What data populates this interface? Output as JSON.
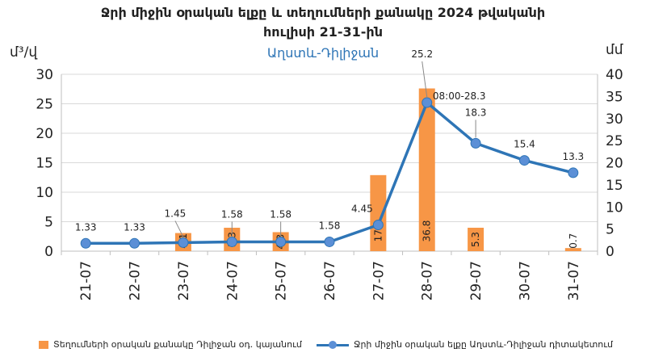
{
  "chart_data": {
    "type": "bar+line",
    "title_line1": "Ջրի միջին օրական ելքը և տեղումների քանակը 2024 թվականի",
    "title_line2": "հուլիսի 21-31-ին",
    "subtitle": "Աղստև-Դիլիջան",
    "y_left_unit": "մ³/վ",
    "y_right_unit": "մմ",
    "y_left_lim": [
      0,
      30
    ],
    "y_left_ticks": [
      "0",
      "5",
      "10",
      "15",
      "20",
      "25",
      "30"
    ],
    "y_right_lim": [
      0,
      40
    ],
    "y_right_ticks": [
      "0",
      "5",
      "10",
      "15",
      "20",
      "25",
      "30",
      "35",
      "40"
    ],
    "categories": [
      "21-07",
      "22-07",
      "23-07",
      "24-07",
      "25-07",
      "26-07",
      "27-07",
      "28-07",
      "29-07",
      "30-07",
      "31-07"
    ],
    "grid": true,
    "legend_position": "bottom",
    "series": [
      {
        "name": "Տեղումների օրական քանակը Դիլիջան օդ. կայանում",
        "kind": "bar",
        "axis": "right",
        "color": "#f79646",
        "values": [
          null,
          null,
          4.1,
          5.3,
          4.3,
          null,
          17.2,
          36.8,
          5.3,
          null,
          0.7
        ],
        "labels": [
          "",
          "",
          "4.1",
          "5.3",
          "4.3",
          "",
          "17.2",
          "36.8",
          "5.3",
          "",
          "0.7"
        ]
      },
      {
        "name": "Ջրի միջին օրական ելքը Աղստև-Դիլիջան դիտակետում",
        "kind": "line",
        "axis": "left",
        "color": "#2e75b6",
        "values": [
          1.33,
          1.33,
          1.45,
          1.58,
          1.58,
          1.58,
          4.45,
          25.2,
          18.3,
          15.4,
          13.3
        ],
        "labels": [
          "1.33",
          "1.33",
          "1.45",
          "1.58",
          "1.58",
          "1.58",
          "4.45",
          "25.2",
          "18.3",
          "15.4",
          "13.3"
        ]
      }
    ],
    "annotations": [
      {
        "text": "08:00-28.3",
        "at_category": "28-07"
      }
    ]
  }
}
